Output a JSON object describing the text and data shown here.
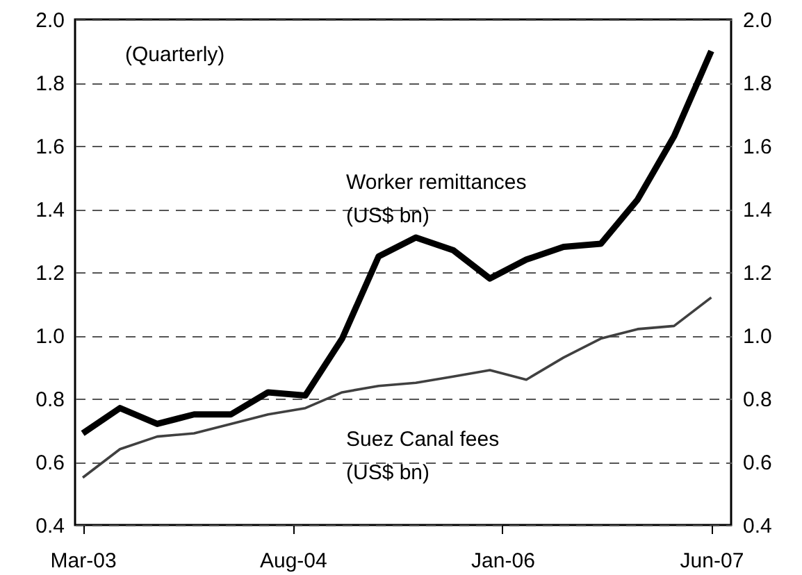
{
  "chart_data": {
    "type": "line",
    "x": [
      "2003-03",
      "2003-06",
      "2003-09",
      "2003-12",
      "2004-03",
      "2004-06",
      "2004-09",
      "2004-12",
      "2005-03",
      "2005-06",
      "2005-09",
      "2005-12",
      "2006-03",
      "2006-06",
      "2006-09",
      "2006-12",
      "2007-03",
      "2007-06"
    ],
    "series": [
      {
        "name": "Worker remittances\n(US$ bn)",
        "color": "#000000",
        "values": [
          0.69,
          0.77,
          0.72,
          0.75,
          0.75,
          0.82,
          0.81,
          0.99,
          1.25,
          1.31,
          1.27,
          1.18,
          1.24,
          1.28,
          1.29,
          1.43,
          1.63,
          1.9
        ]
      },
      {
        "name": "Suez Canal fees\n(US$ bn)",
        "color": "#404040",
        "values": [
          0.55,
          0.64,
          0.68,
          0.69,
          0.72,
          0.75,
          0.77,
          0.82,
          0.84,
          0.85,
          0.87,
          0.89,
          0.86,
          0.93,
          0.99,
          1.02,
          1.03,
          1.12
        ]
      }
    ],
    "xlim": [
      "2003-02-10",
      "2007-07-20"
    ],
    "xticks": [
      {
        "value": "2003-03",
        "label": "Mar-03"
      },
      {
        "value": "2004-08",
        "label": "Aug-04"
      },
      {
        "value": "2006-01",
        "label": "Jan-06"
      },
      {
        "value": "2007-06",
        "label": "Jun-07"
      }
    ],
    "ylim": [
      0.4,
      2.0
    ],
    "yticks": [
      {
        "value": 0.4,
        "label": "0.4"
      },
      {
        "value": 0.6,
        "label": "0.6"
      },
      {
        "value": 0.8,
        "label": "0.8"
      },
      {
        "value": 1.0,
        "label": "1.0"
      },
      {
        "value": 1.2,
        "label": "1.2"
      },
      {
        "value": 1.4,
        "label": "1.4"
      },
      {
        "value": 1.6,
        "label": "1.6"
      },
      {
        "value": 1.8,
        "label": "1.8"
      },
      {
        "value": 2.0,
        "label": "2.0"
      }
    ],
    "y2lim": [
      0.4,
      2.0
    ],
    "y2ticks": [
      {
        "value": 0.4,
        "label": "0.4"
      },
      {
        "value": 0.6,
        "label": "0.6"
      },
      {
        "value": 0.8,
        "label": "0.8"
      },
      {
        "value": 1.0,
        "label": "1.0"
      },
      {
        "value": 1.2,
        "label": "1.2"
      },
      {
        "value": 1.4,
        "label": "1.4"
      },
      {
        "value": 1.6,
        "label": "1.6"
      },
      {
        "value": 1.8,
        "label": "1.8"
      },
      {
        "value": 2.0,
        "label": "2.0"
      }
    ],
    "grid": "y",
    "marker": "none",
    "line_style": "solid",
    "annotations": [
      "(Quarterly)"
    ]
  }
}
